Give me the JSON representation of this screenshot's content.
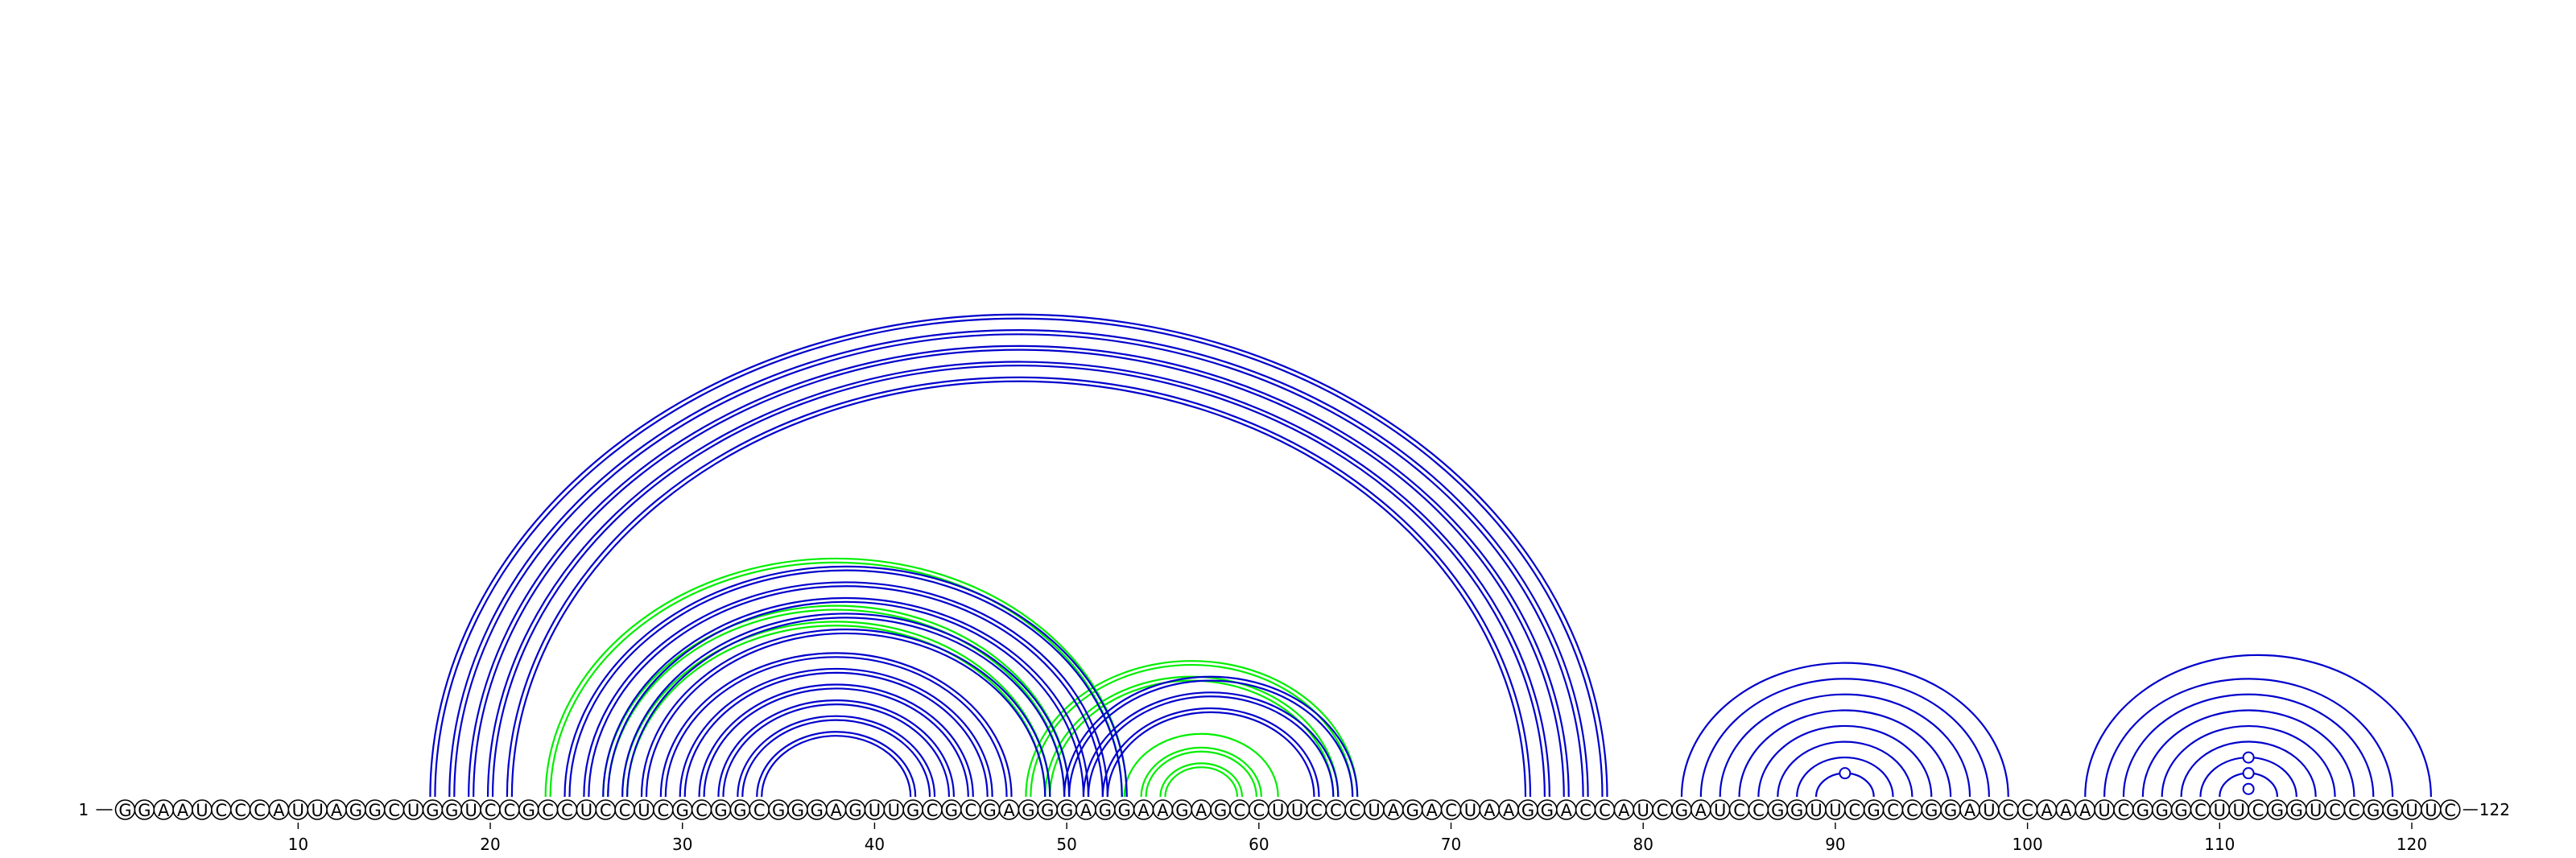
{
  "diagram": {
    "type": "rna-arc-diagram",
    "sequence": "GGAAUCCCAUUAGGCUGGUCCGCCUCCUCGCGGCGGGAGUUGCGCGAGGGAGGAAGAGCCUUCCCUAGACUAAGGACCAUCGAUCCGGUUCGCCGGAUCCAAAUCGGGCUUCGGUCCGGUUC",
    "length": 122,
    "start_label": "1",
    "end_label": "122",
    "ticks": [
      "10",
      "20",
      "30",
      "40",
      "50",
      "60",
      "70",
      "80",
      "90",
      "100",
      "110",
      "120"
    ],
    "tick_positions": [
      10,
      20,
      30,
      40,
      50,
      60,
      70,
      80,
      90,
      100,
      110,
      120
    ],
    "colors": {
      "primary_pairs": "#0000cc",
      "alternative_pairs": "#00ee00"
    },
    "blue_arcs": [
      [
        17,
        78,
        2
      ],
      [
        18,
        77,
        2
      ],
      [
        19,
        76,
        2
      ],
      [
        20,
        75,
        2
      ],
      [
        21,
        74,
        2
      ],
      [
        24,
        53,
        2
      ],
      [
        25,
        52,
        2
      ],
      [
        26,
        51,
        2
      ],
      [
        27,
        50,
        2
      ],
      [
        28,
        49,
        2
      ],
      [
        29,
        47,
        2
      ],
      [
        30,
        46,
        2
      ],
      [
        31,
        45,
        2
      ],
      [
        32,
        44,
        2
      ],
      [
        33,
        43,
        2
      ],
      [
        34,
        42,
        2
      ],
      [
        50,
        65,
        2
      ],
      [
        51,
        64,
        2
      ],
      [
        52,
        63,
        2
      ],
      [
        82,
        99,
        1
      ],
      [
        83,
        98,
        1
      ],
      [
        84,
        97,
        1
      ],
      [
        85,
        96,
        1
      ],
      [
        86,
        95,
        1
      ],
      [
        87,
        94,
        1
      ],
      [
        88,
        93,
        1
      ],
      [
        89,
        92,
        1
      ],
      [
        103,
        121,
        1
      ],
      [
        104,
        119,
        1
      ],
      [
        105,
        118,
        1
      ],
      [
        106,
        117,
        1
      ],
      [
        107,
        116,
        1
      ],
      [
        108,
        115,
        1
      ],
      [
        109,
        114,
        1
      ],
      [
        110,
        113,
        1
      ]
    ],
    "green_arcs": [
      [
        23,
        53,
        2
      ],
      [
        26,
        50,
        2
      ],
      [
        27,
        49,
        2
      ],
      [
        48,
        65,
        2
      ],
      [
        49,
        64,
        2
      ],
      [
        53,
        61,
        1
      ],
      [
        54,
        60,
        2
      ],
      [
        55,
        59,
        2
      ]
    ],
    "loop_markers": [
      [
        89,
        92
      ],
      [
        109,
        114
      ],
      [
        110,
        113
      ],
      [
        111,
        112
      ]
    ]
  }
}
